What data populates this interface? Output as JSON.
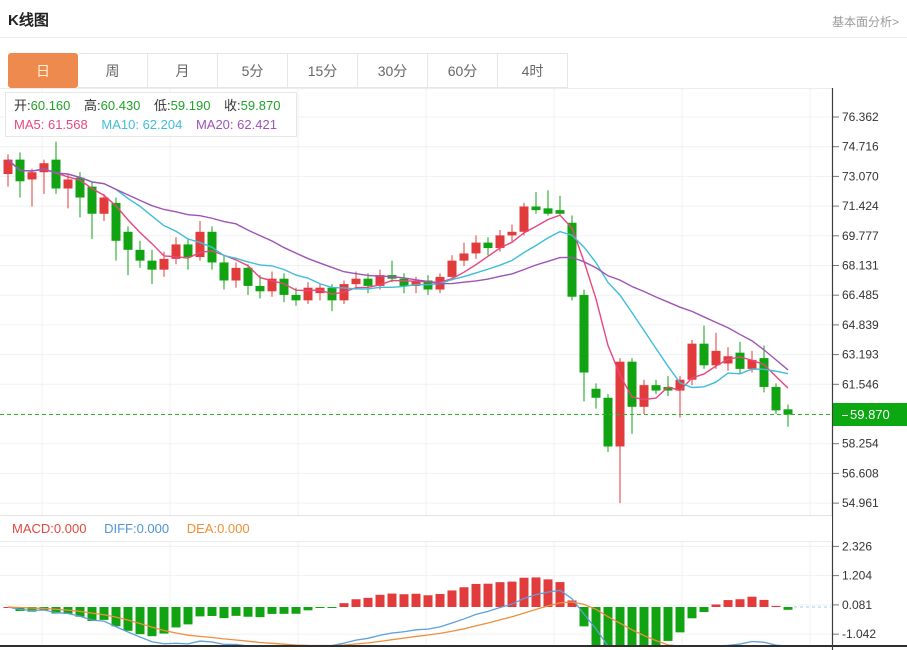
{
  "header": {
    "title": "K线图",
    "link_label": "基本面分析>"
  },
  "tabs": [
    {
      "label": "日",
      "active": true
    },
    {
      "label": "周",
      "active": false
    },
    {
      "label": "月",
      "active": false
    },
    {
      "label": "5分",
      "active": false
    },
    {
      "label": "15分",
      "active": false
    },
    {
      "label": "30分",
      "active": false
    },
    {
      "label": "60分",
      "active": false
    },
    {
      "label": "4时",
      "active": false
    }
  ],
  "ohlc_legend": {
    "open_label": "开:",
    "open_value": "60.160",
    "high_label": "高:",
    "high_value": "60.430",
    "low_label": "低:",
    "low_value": "59.190",
    "close_label": "收:",
    "close_value": "59.870"
  },
  "ma_legend": {
    "ma5_label": "MA5:",
    "ma5_value": "61.568",
    "ma10_label": "MA10:",
    "ma10_value": "62.204",
    "ma20_label": "MA20:",
    "ma20_value": "62.421"
  },
  "macd_legend": {
    "macd_label": "MACD:",
    "macd_value": "0.000",
    "diff_label": "DIFF:",
    "diff_value": "0.000",
    "dea_label": "DEA:",
    "dea_value": "0.000"
  },
  "price_badge": {
    "value": "59.870"
  },
  "colors": {
    "up_candle": "#e23b3c",
    "down_candle": "#12a312",
    "ma5": "#e8477d",
    "ma10": "#3fbdd9",
    "ma20": "#9f54b5",
    "diff_line": "#5e9fdc",
    "dea_line": "#ee8f3d",
    "active_tab": "#ef8a4e",
    "badge": "#0ba811",
    "current_price_line": "#2db32d"
  },
  "chart_data": {
    "type": "candlestick",
    "title": "K线图",
    "timeframe": "日",
    "current_price": 59.87,
    "last_candle": {
      "open": 60.16,
      "high": 60.43,
      "low": 59.19,
      "close": 59.87
    },
    "overlays": [
      "MA5",
      "MA10",
      "MA20"
    ],
    "lower_pane": "MACD (DIFF, DEA, histogram)",
    "legend_position": "top-left",
    "grid": true,
    "price_axis": {
      "side": "right",
      "ticks": [
        {
          "value": 76.362,
          "label": "76.362"
        },
        {
          "value": 74.716,
          "label": "74.716"
        },
        {
          "value": 73.07,
          "label": "73.070"
        },
        {
          "value": 71.424,
          "label": "71.424"
        },
        {
          "value": 69.777,
          "label": "69.777"
        },
        {
          "value": 68.131,
          "label": "68.131"
        },
        {
          "value": 66.485,
          "label": "66.485"
        },
        {
          "value": 64.839,
          "label": "64.839"
        },
        {
          "value": 63.193,
          "label": "63.193"
        },
        {
          "value": 61.546,
          "label": "61.546"
        },
        {
          "value": 59.9,
          "label": ""
        },
        {
          "value": 58.254,
          "label": "58.254"
        },
        {
          "value": 56.608,
          "label": "56.608"
        },
        {
          "value": 54.961,
          "label": "54.961"
        }
      ]
    },
    "macd_axis": {
      "side": "right",
      "ticks": [
        {
          "value": 2.326,
          "label": "2.326"
        },
        {
          "value": 1.204,
          "label": "1.204"
        },
        {
          "value": 0.081,
          "label": "0.081"
        },
        {
          "value": -1.042,
          "label": "-1.042"
        }
      ]
    },
    "candles_ohlc_estimated": [
      [
        73.2,
        74.3,
        72.5,
        74.0
      ],
      [
        74.0,
        74.4,
        71.9,
        72.8
      ],
      [
        72.9,
        73.5,
        71.4,
        73.3
      ],
      [
        73.3,
        74.0,
        72.1,
        73.8
      ],
      [
        74.0,
        75.0,
        72.1,
        72.4
      ],
      [
        72.4,
        73.2,
        71.3,
        72.9
      ],
      [
        73.0,
        73.3,
        70.8,
        71.9
      ],
      [
        72.5,
        72.8,
        69.6,
        71.0
      ],
      [
        71.0,
        72.1,
        70.6,
        71.9
      ],
      [
        71.6,
        71.9,
        68.4,
        69.5
      ],
      [
        70.0,
        70.3,
        67.6,
        69.0
      ],
      [
        69.0,
        69.5,
        68.0,
        68.4
      ],
      [
        68.4,
        69.0,
        67.1,
        67.9
      ],
      [
        67.9,
        68.9,
        67.5,
        68.5
      ],
      [
        68.5,
        69.7,
        68.2,
        69.3
      ],
      [
        69.3,
        69.6,
        67.9,
        68.6
      ],
      [
        68.6,
        70.6,
        68.4,
        70.0
      ],
      [
        70.0,
        70.3,
        67.9,
        68.3
      ],
      [
        68.3,
        68.7,
        66.8,
        67.3
      ],
      [
        67.3,
        68.3,
        66.9,
        68.0
      ],
      [
        68.0,
        68.2,
        66.5,
        67.0
      ],
      [
        67.0,
        67.6,
        66.3,
        66.7
      ],
      [
        66.7,
        67.8,
        66.4,
        67.4
      ],
      [
        67.4,
        67.7,
        66.1,
        66.5
      ],
      [
        66.5,
        66.9,
        65.9,
        66.2
      ],
      [
        66.2,
        67.2,
        66.0,
        66.9
      ],
      [
        66.6,
        67.1,
        66.2,
        66.9
      ],
      [
        66.9,
        67.1,
        65.6,
        66.2
      ],
      [
        66.2,
        67.3,
        66.0,
        67.1
      ],
      [
        67.1,
        67.8,
        66.8,
        67.4
      ],
      [
        67.4,
        67.7,
        66.6,
        67.0
      ],
      [
        67.0,
        67.9,
        66.8,
        67.6
      ],
      [
        67.6,
        68.4,
        67.2,
        67.4
      ],
      [
        67.4,
        67.7,
        66.6,
        67.0
      ],
      [
        67.0,
        67.5,
        66.6,
        67.3
      ],
      [
        67.3,
        67.6,
        66.5,
        66.8
      ],
      [
        66.8,
        67.7,
        66.6,
        67.5
      ],
      [
        67.5,
        68.7,
        67.3,
        68.4
      ],
      [
        68.4,
        69.4,
        68.1,
        68.8
      ],
      [
        68.8,
        69.8,
        68.5,
        69.4
      ],
      [
        69.4,
        69.7,
        68.7,
        69.1
      ],
      [
        69.1,
        70.1,
        68.9,
        69.8
      ],
      [
        69.8,
        70.4,
        69.4,
        70.0
      ],
      [
        70.0,
        71.6,
        69.8,
        71.4
      ],
      [
        71.4,
        72.2,
        71.0,
        71.2
      ],
      [
        71.3,
        72.3,
        70.9,
        71.0
      ],
      [
        71.2,
        72.0,
        70.9,
        71.0
      ],
      [
        70.5,
        70.9,
        66.2,
        66.4
      ],
      [
        66.5,
        66.8,
        60.6,
        62.2
      ],
      [
        61.3,
        61.6,
        60.2,
        60.8
      ],
      [
        60.8,
        61.0,
        57.8,
        58.1
      ],
      [
        58.1,
        63.0,
        54.96,
        62.8
      ],
      [
        62.8,
        63.0,
        58.8,
        60.3
      ],
      [
        60.3,
        61.8,
        59.9,
        61.5
      ],
      [
        61.5,
        61.8,
        61.0,
        61.2
      ],
      [
        61.4,
        62.0,
        60.9,
        61.2
      ],
      [
        61.2,
        62.0,
        59.7,
        61.8
      ],
      [
        61.8,
        64.0,
        61.5,
        63.8
      ],
      [
        63.8,
        64.8,
        62.4,
        62.6
      ],
      [
        62.6,
        64.4,
        62.4,
        63.4
      ],
      [
        62.7,
        63.6,
        62.3,
        63.1
      ],
      [
        63.3,
        63.9,
        62.1,
        62.4
      ],
      [
        62.4,
        63.4,
        62.2,
        62.9
      ],
      [
        63.0,
        63.7,
        61.1,
        61.4
      ],
      [
        61.4,
        61.6,
        59.9,
        60.1
      ],
      [
        60.16,
        60.43,
        59.19,
        59.87
      ]
    ]
  }
}
